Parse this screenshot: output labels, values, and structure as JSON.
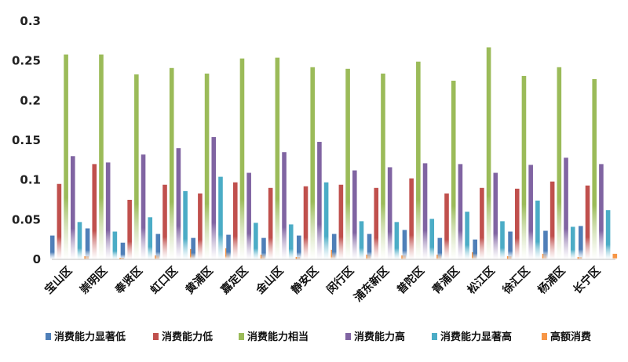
{
  "chart_data": {
    "type": "bar",
    "categories": [
      "宝山区",
      "崇明区",
      "奉贤区",
      "虹口区",
      "黄浦区",
      "嘉定区",
      "金山区",
      "静安区",
      "闵行区",
      "浦东新区",
      "普陀区",
      "青浦区",
      "松江区",
      "徐汇区",
      "杨浦区",
      "长宁区"
    ],
    "series": [
      {
        "name": "消费能力显著低",
        "color": "#4f7fb8",
        "values": [
          0.03,
          0.039,
          0.021,
          0.032,
          0.027,
          0.031,
          0.027,
          0.03,
          0.032,
          0.032,
          0.037,
          0.027,
          0.025,
          0.035,
          0.036,
          0.042
        ]
      },
      {
        "name": "消费能力低",
        "color": "#c0504d",
        "values": [
          0.095,
          0.12,
          0.075,
          0.094,
          0.083,
          0.097,
          0.09,
          0.092,
          0.094,
          0.09,
          0.102,
          0.083,
          0.09,
          0.089,
          0.098,
          0.093
        ]
      },
      {
        "name": "消费能力相当",
        "color": "#9bbb59",
        "values": [
          0.258,
          0.258,
          0.233,
          0.241,
          0.234,
          0.253,
          0.254,
          0.242,
          0.24,
          0.234,
          0.249,
          0.225,
          0.267,
          0.231,
          0.242,
          0.227
        ]
      },
      {
        "name": "消费能力高",
        "color": "#8064a2",
        "values": [
          0.13,
          0.122,
          0.132,
          0.14,
          0.154,
          0.109,
          0.135,
          0.148,
          0.112,
          0.116,
          0.121,
          0.12,
          0.109,
          0.119,
          0.128,
          0.12
        ]
      },
      {
        "name": "消费能力显著高",
        "color": "#4bacc6",
        "values": [
          0.047,
          0.035,
          0.053,
          0.086,
          0.104,
          0.046,
          0.044,
          0.097,
          0.048,
          0.047,
          0.051,
          0.06,
          0.048,
          0.074,
          0.041,
          0.062
        ]
      },
      {
        "name": "高额消费",
        "color": "#f79646",
        "values": [
          0.004,
          0.002,
          0.005,
          0.013,
          0.014,
          0.006,
          0.003,
          0.012,
          0.006,
          0.005,
          0.006,
          0.009,
          0.004,
          0.007,
          0.003,
          0.007
        ]
      }
    ],
    "yticks": [
      "0",
      "0.05",
      "0.1",
      "0.15",
      "0.2",
      "0.25",
      "0.3"
    ],
    "ylim": [
      0,
      0.3
    ],
    "grid": false,
    "legend_position": "bottom"
  }
}
